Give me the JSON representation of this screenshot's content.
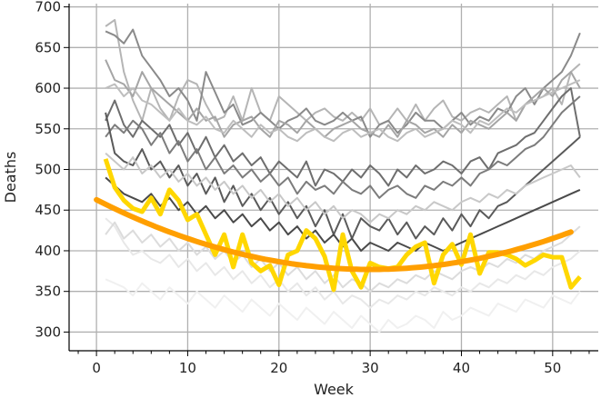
{
  "chart_data": {
    "type": "line",
    "title": "",
    "xlabel": "Week",
    "ylabel": "Deaths",
    "xlim": [
      -3,
      55
    ],
    "ylim": [
      277,
      704
    ],
    "xticks": [
      0,
      10,
      20,
      30,
      40,
      50
    ],
    "yticks": [
      300,
      350,
      400,
      450,
      500,
      550,
      600,
      650,
      700
    ],
    "grid": true,
    "legend": "none",
    "series": [
      {
        "color": "#b5b5b5",
        "values": [
          676,
          684,
          620,
          585,
          560,
          600,
          575,
          560,
          590,
          610,
          605,
          580,
          560,
          565,
          590,
          560,
          600,
          570,
          560,
          590,
          580,
          570,
          560,
          570,
          575,
          565,
          560,
          570,
          560,
          575,
          555,
          560,
          575,
          560,
          580,
          560,
          575,
          585,
          565,
          560,
          570,
          575,
          570,
          580,
          590,
          560,
          580,
          585,
          590,
          600,
          580,
          620,
          630
        ]
      },
      {
        "color": "#8a8a8a",
        "values": [
          670,
          665,
          655,
          672,
          640,
          625,
          610,
          590,
          600,
          585,
          560,
          620,
          595,
          570,
          580,
          555,
          560,
          570,
          560,
          550,
          560,
          565,
          575,
          560,
          555,
          560,
          570,
          560,
          565,
          540,
          555,
          560,
          545,
          555,
          570,
          560,
          560,
          550,
          560,
          570,
          555,
          565,
          560,
          575,
          570,
          590,
          600,
          580,
          600,
          610,
          620,
          640,
          668
        ]
      },
      {
        "color": "#a5a5a5",
        "values": [
          635,
          610,
          605,
          590,
          620,
          600,
          590,
          580,
          570,
          560,
          575,
          560,
          565,
          540,
          555,
          560,
          565,
          550,
          540,
          560,
          555,
          545,
          560,
          550,
          540,
          550,
          555,
          560,
          550,
          545,
          540,
          555,
          540,
          560,
          555,
          545,
          550,
          540,
          555,
          545,
          560,
          555,
          550,
          560,
          570,
          560,
          580,
          590,
          600,
          590,
          610,
          620,
          600
        ]
      },
      {
        "color": "#bebebe",
        "values": [
          600,
          605,
          590,
          600,
          585,
          580,
          570,
          560,
          575,
          560,
          555,
          565,
          550,
          545,
          560,
          550,
          540,
          555,
          545,
          550,
          540,
          535,
          545,
          550,
          540,
          535,
          545,
          550,
          540,
          545,
          550,
          540,
          535,
          545,
          550,
          540,
          545,
          550,
          560,
          555,
          545,
          560,
          555,
          565,
          575,
          570,
          580,
          585,
          590,
          595,
          600,
          605,
          610
        ]
      },
      {
        "color": "#6e6e6e",
        "values": [
          560,
          585,
          555,
          540,
          560,
          550,
          540,
          555,
          530,
          545,
          520,
          540,
          515,
          530,
          510,
          520,
          505,
          515,
          495,
          510,
          500,
          490,
          510,
          480,
          500,
          495,
          485,
          500,
          490,
          505,
          495,
          480,
          500,
          490,
          505,
          495,
          500,
          510,
          505,
          495,
          510,
          515,
          500,
          520,
          525,
          530,
          540,
          545,
          560,
          575,
          590,
          600,
          540
        ]
      },
      {
        "color": "#7c7c7c",
        "values": [
          540,
          555,
          545,
          560,
          550,
          530,
          545,
          520,
          535,
          510,
          525,
          500,
          515,
          495,
          505,
          490,
          500,
          485,
          495,
          480,
          490,
          470,
          485,
          475,
          480,
          470,
          485,
          475,
          470,
          480,
          465,
          475,
          480,
          470,
          465,
          480,
          475,
          485,
          480,
          490,
          480,
          495,
          500,
          510,
          505,
          515,
          525,
          530,
          540,
          555,
          570,
          580,
          590
        ]
      },
      {
        "color": "#5a5a5a",
        "values": [
          570,
          520,
          510,
          505,
          525,
          500,
          510,
          490,
          505,
          480,
          495,
          470,
          490,
          460,
          480,
          455,
          470,
          450,
          465,
          445,
          460,
          440,
          455,
          430,
          450,
          420,
          445,
          415,
          440,
          430,
          425,
          440,
          420,
          435,
          415,
          430,
          420,
          440,
          425,
          445,
          430,
          450,
          440,
          455,
          460,
          470,
          480,
          490,
          500,
          510,
          520,
          530,
          540
        ]
      },
      {
        "color": "#4a4a4a",
        "values": [
          490,
          480,
          470,
          465,
          460,
          470,
          455,
          465,
          450,
          460,
          445,
          455,
          440,
          450,
          435,
          445,
          430,
          440,
          425,
          435,
          420,
          430,
          415,
          425,
          410,
          420,
          405,
          415,
          400,
          410,
          405,
          400,
          410,
          405,
          400,
          410,
          405,
          400,
          405,
          410,
          415,
          420,
          425,
          430,
          435,
          440,
          445,
          450,
          455,
          460,
          465,
          470,
          475
        ]
      },
      {
        "color": "#e8e8e8",
        "values": [
          440,
          430,
          410,
          395,
          400,
          390,
          385,
          395,
          380,
          390,
          375,
          385,
          370,
          380,
          365,
          375,
          360,
          370,
          355,
          365,
          350,
          360,
          345,
          355,
          340,
          350,
          335,
          345,
          340,
          330,
          340,
          335,
          345,
          340,
          350,
          345,
          355,
          350,
          345,
          355,
          350,
          360,
          355,
          365,
          360,
          370,
          365,
          375,
          370,
          380,
          385,
          390,
          400
        ]
      },
      {
        "color": "#f0f0f0",
        "values": [
          365,
          360,
          355,
          345,
          360,
          350,
          340,
          355,
          345,
          335,
          350,
          340,
          330,
          345,
          335,
          325,
          340,
          330,
          320,
          335,
          325,
          315,
          330,
          320,
          310,
          325,
          315,
          305,
          320,
          310,
          300,
          315,
          305,
          310,
          320,
          315,
          305,
          325,
          315,
          320,
          330,
          325,
          320,
          335,
          330,
          325,
          340,
          335,
          330,
          345,
          340,
          335,
          350
        ]
      },
      {
        "color": "#dcdcdc",
        "values": [
          420,
          435,
          415,
          425,
          410,
          420,
          405,
          415,
          400,
          410,
          395,
          405,
          390,
          400,
          385,
          395,
          380,
          390,
          375,
          385,
          370,
          380,
          365,
          375,
          360,
          370,
          355,
          365,
          360,
          350,
          360,
          355,
          365,
          360,
          370,
          365,
          375,
          370,
          365,
          375,
          380,
          375,
          385,
          380,
          390,
          385,
          395,
          390,
          400,
          405,
          410,
          420,
          430
        ]
      },
      {
        "color": "#c8c8c8",
        "values": [
          520,
          510,
          500,
          515,
          495,
          505,
          490,
          500,
          485,
          495,
          480,
          490,
          475,
          485,
          470,
          480,
          465,
          475,
          460,
          470,
          455,
          465,
          450,
          460,
          445,
          455,
          440,
          450,
          445,
          435,
          445,
          440,
          450,
          445,
          455,
          450,
          460,
          455,
          450,
          460,
          465,
          460,
          470,
          465,
          475,
          470,
          480,
          485,
          490,
          495,
          500,
          505,
          490
        ]
      }
    ],
    "highlight": {
      "color": "#ffd700",
      "values": [
        513,
        478,
        462,
        452,
        448,
        465,
        445,
        475,
        462,
        438,
        445,
        420,
        395,
        420,
        380,
        420,
        385,
        375,
        382,
        358,
        395,
        400,
        425,
        415,
        393,
        352,
        420,
        375,
        355,
        385,
        380,
        378,
        380,
        395,
        405,
        410,
        360,
        395,
        408,
        383,
        420,
        372,
        398,
        398,
        395,
        390,
        382,
        388,
        395,
        392,
        392,
        355,
        368
      ]
    },
    "trend": {
      "color": "#ff9f00",
      "a": 0.0953,
      "vertex": 30,
      "min": 377
    }
  }
}
